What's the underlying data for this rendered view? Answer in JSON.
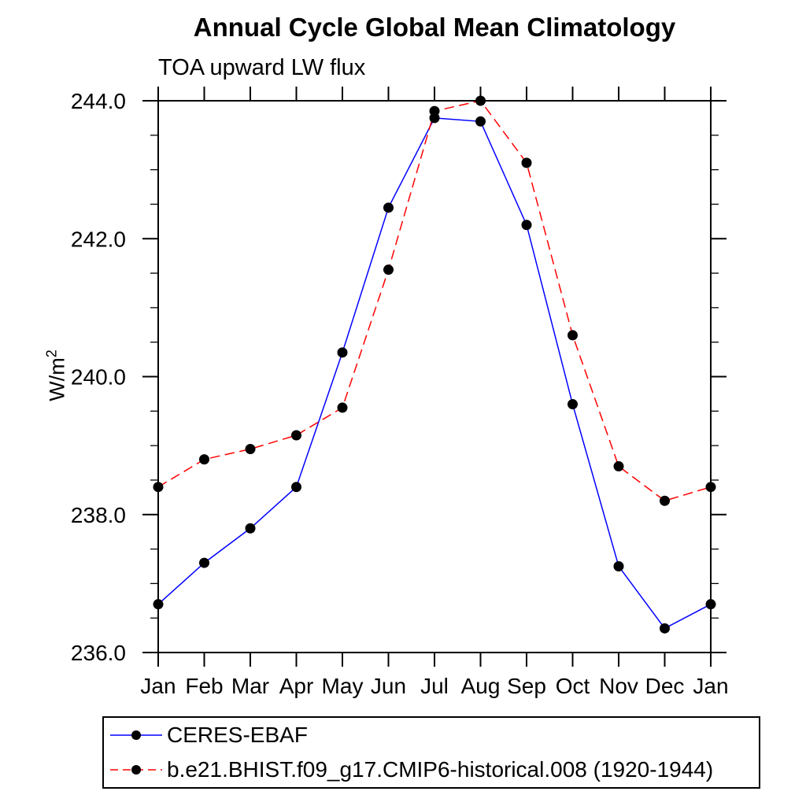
{
  "chart_data": {
    "type": "line",
    "title": "Annual Cycle Global Mean Climatology",
    "subtitle": "TOA upward LW flux",
    "ylabel": {
      "text": "W/m",
      "sup": "2"
    },
    "x_categories": [
      "Jan",
      "Feb",
      "Mar",
      "Apr",
      "May",
      "Jun",
      "Jul",
      "Aug",
      "Sep",
      "Oct",
      "Nov",
      "Dec",
      "Jan"
    ],
    "ylim": [
      236.0,
      244.0
    ],
    "ytick_major": [
      236,
      238,
      240,
      242,
      244
    ],
    "ytick_labels": [
      "236.0",
      "238.0",
      "240.0",
      "242.0",
      "244.0"
    ],
    "ytick_minor_step": 0.5,
    "grid": false,
    "legend_position": "bottom-left",
    "axis_color": "#000000",
    "marker_shape": "filled-circle",
    "series": [
      {
        "name": "CERES-EBAF",
        "color": "#0000ff",
        "style": "solid",
        "marker_color": "#000000",
        "values": [
          236.7,
          237.3,
          237.8,
          238.4,
          240.35,
          242.45,
          243.75,
          243.7,
          242.2,
          239.6,
          237.25,
          236.35,
          236.7
        ]
      },
      {
        "name": "b.e21.BHIST.f09_g17.CMIP6-historical.008 (1920-1944)",
        "color": "#ff0000",
        "style": "dashed",
        "marker_color": "#000000",
        "values": [
          238.4,
          238.8,
          238.95,
          239.15,
          239.55,
          241.55,
          243.85,
          244.0,
          243.1,
          240.6,
          238.7,
          238.2,
          238.4
        ]
      }
    ]
  }
}
